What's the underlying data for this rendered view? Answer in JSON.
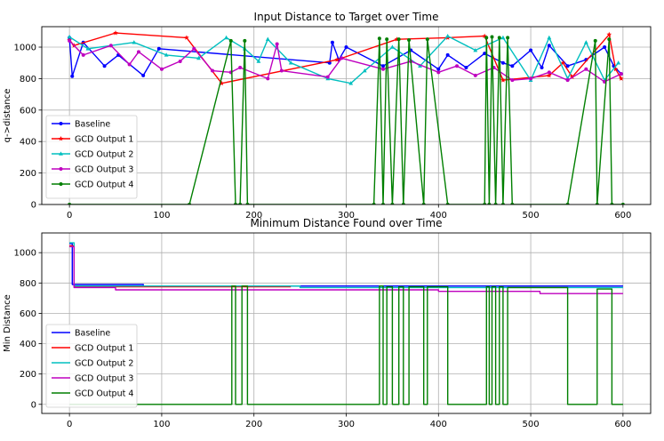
{
  "chart_data": [
    {
      "type": "line",
      "title": "Input Distance to Target over Time",
      "xlabel": "",
      "ylabel": "q->distance",
      "xlim": [
        -30,
        630
      ],
      "ylim": [
        0,
        1130
      ],
      "xticks": [
        0,
        100,
        200,
        300,
        400,
        500,
        600
      ],
      "yticks": [
        0,
        200,
        400,
        600,
        800,
        1000
      ],
      "grid": true,
      "legend": "lower-left",
      "series": [
        {
          "name": "Baseline",
          "color": "#0000ff",
          "marker": "circle",
          "x": [
            0,
            3,
            15,
            38,
            53,
            80,
            97,
            282,
            285,
            292,
            300,
            340,
            370,
            400,
            410,
            430,
            450,
            470,
            480,
            500,
            512,
            520,
            540,
            560,
            580,
            590,
            598
          ],
          "y": [
            1060,
            815,
            1030,
            880,
            950,
            820,
            990,
            900,
            1030,
            920,
            1000,
            880,
            980,
            860,
            950,
            870,
            960,
            900,
            880,
            980,
            870,
            1010,
            880,
            920,
            1000,
            880,
            830
          ]
        },
        {
          "name": "GCD Output 1",
          "color": "#ff0000",
          "marker": "star",
          "x": [
            0,
            5,
            50,
            127,
            165,
            290,
            355,
            410,
            450,
            470,
            520,
            535,
            545,
            585,
            592,
            598
          ],
          "y": [
            1045,
            1010,
            1090,
            1060,
            770,
            920,
            1050,
            1060,
            1070,
            790,
            820,
            900,
            810,
            1080,
            860,
            800
          ],
          "range_seed": 2
        },
        {
          "name": "GCD Output 2",
          "color": "#00bfbf",
          "marker": "triangle",
          "x": [
            0,
            20,
            70,
            105,
            140,
            170,
            190,
            205,
            215,
            240,
            280,
            305,
            320,
            350,
            380,
            410,
            440,
            470,
            500,
            520,
            540,
            560,
            580,
            595
          ],
          "y": [
            1065,
            990,
            1030,
            950,
            930,
            1060,
            990,
            910,
            1050,
            900,
            800,
            770,
            850,
            1000,
            880,
            1070,
            980,
            1060,
            790,
            1060,
            800,
            1030,
            790,
            900
          ]
        },
        {
          "name": "GCD Output 3",
          "color": "#bf00bf",
          "marker": "circle",
          "x": [
            0,
            15,
            45,
            65,
            75,
            100,
            120,
            135,
            155,
            175,
            185,
            215,
            225,
            230,
            280,
            295,
            340,
            370,
            400,
            420,
            440,
            460,
            480,
            500,
            520,
            540,
            560,
            580,
            598
          ],
          "y": [
            1040,
            950,
            1010,
            890,
            970,
            860,
            910,
            990,
            850,
            840,
            870,
            800,
            1020,
            850,
            810,
            930,
            860,
            910,
            840,
            880,
            820,
            870,
            790,
            800,
            840,
            790,
            860,
            780,
            830
          ]
        },
        {
          "name": "GCD Output 4",
          "color": "#007f00",
          "marker": "circle",
          "x": [
            0,
            130,
            175,
            180,
            185,
            190,
            193,
            330,
            336,
            340,
            344,
            350,
            357,
            362,
            368,
            384,
            388,
            410,
            450,
            452,
            455,
            458,
            462,
            466,
            470,
            475,
            480,
            540,
            570,
            572,
            585,
            588,
            600
          ],
          "y": [
            0,
            0,
            1040,
            0,
            0,
            1040,
            0,
            0,
            1055,
            0,
            1050,
            0,
            1050,
            0,
            1045,
            0,
            1050,
            0,
            0,
            1060,
            0,
            1065,
            0,
            1060,
            0,
            1060,
            0,
            0,
            1040,
            0,
            1050,
            0,
            0
          ]
        }
      ]
    },
    {
      "type": "line",
      "title": "Minimum Distance Found over Time",
      "xlabel": "",
      "ylabel": "Min Distance",
      "xlim": [
        -30,
        630
      ],
      "ylim": [
        -60,
        1130
      ],
      "xticks": [
        0,
        100,
        200,
        300,
        400,
        500,
        600
      ],
      "yticks": [
        0,
        200,
        400,
        600,
        800,
        1000
      ],
      "grid": true,
      "legend": "lower-left",
      "series": [
        {
          "name": "Baseline",
          "color": "#0000ff",
          "x": [
            0,
            3,
            3,
            80,
            80,
            600
          ],
          "y": [
            1060,
            1060,
            790,
            790,
            780,
            780
          ]
        },
        {
          "name": "GCD Output 1",
          "color": "#ff0000",
          "x": [
            0,
            5,
            5,
            240
          ],
          "y": [
            1045,
            1045,
            775,
            775
          ]
        },
        {
          "name": "GCD Output 2",
          "color": "#00bfbf",
          "x": [
            0,
            5,
            5,
            250,
            250,
            600
          ],
          "y": [
            1065,
            1065,
            780,
            780,
            770,
            770
          ]
        },
        {
          "name": "GCD Output 3",
          "color": "#bf00bf",
          "x": [
            0,
            5,
            5,
            50,
            50,
            400,
            400,
            510,
            510,
            600
          ],
          "y": [
            1040,
            1040,
            770,
            770,
            755,
            755,
            745,
            745,
            730,
            730
          ]
        },
        {
          "name": "GCD Output 4",
          "color": "#007f00",
          "x": [
            0,
            176,
            176,
            180,
            180,
            187,
            187,
            193,
            193,
            336,
            336,
            340,
            340,
            344,
            344,
            350,
            350,
            357,
            357,
            362,
            362,
            368,
            368,
            384,
            384,
            388,
            388,
            410,
            410,
            452,
            452,
            455,
            455,
            458,
            458,
            462,
            462,
            466,
            466,
            470,
            470,
            475,
            475,
            540,
            540,
            572,
            572,
            588,
            588,
            600
          ],
          "y": [
            0,
            0,
            780,
            780,
            0,
            0,
            780,
            780,
            0,
            0,
            780,
            780,
            0,
            0,
            775,
            775,
            0,
            0,
            775,
            775,
            0,
            0,
            775,
            775,
            0,
            0,
            775,
            775,
            0,
            0,
            775,
            775,
            0,
            0,
            775,
            775,
            0,
            0,
            775,
            775,
            0,
            0,
            770,
            770,
            0,
            0,
            760,
            760,
            0,
            0
          ]
        }
      ]
    }
  ]
}
